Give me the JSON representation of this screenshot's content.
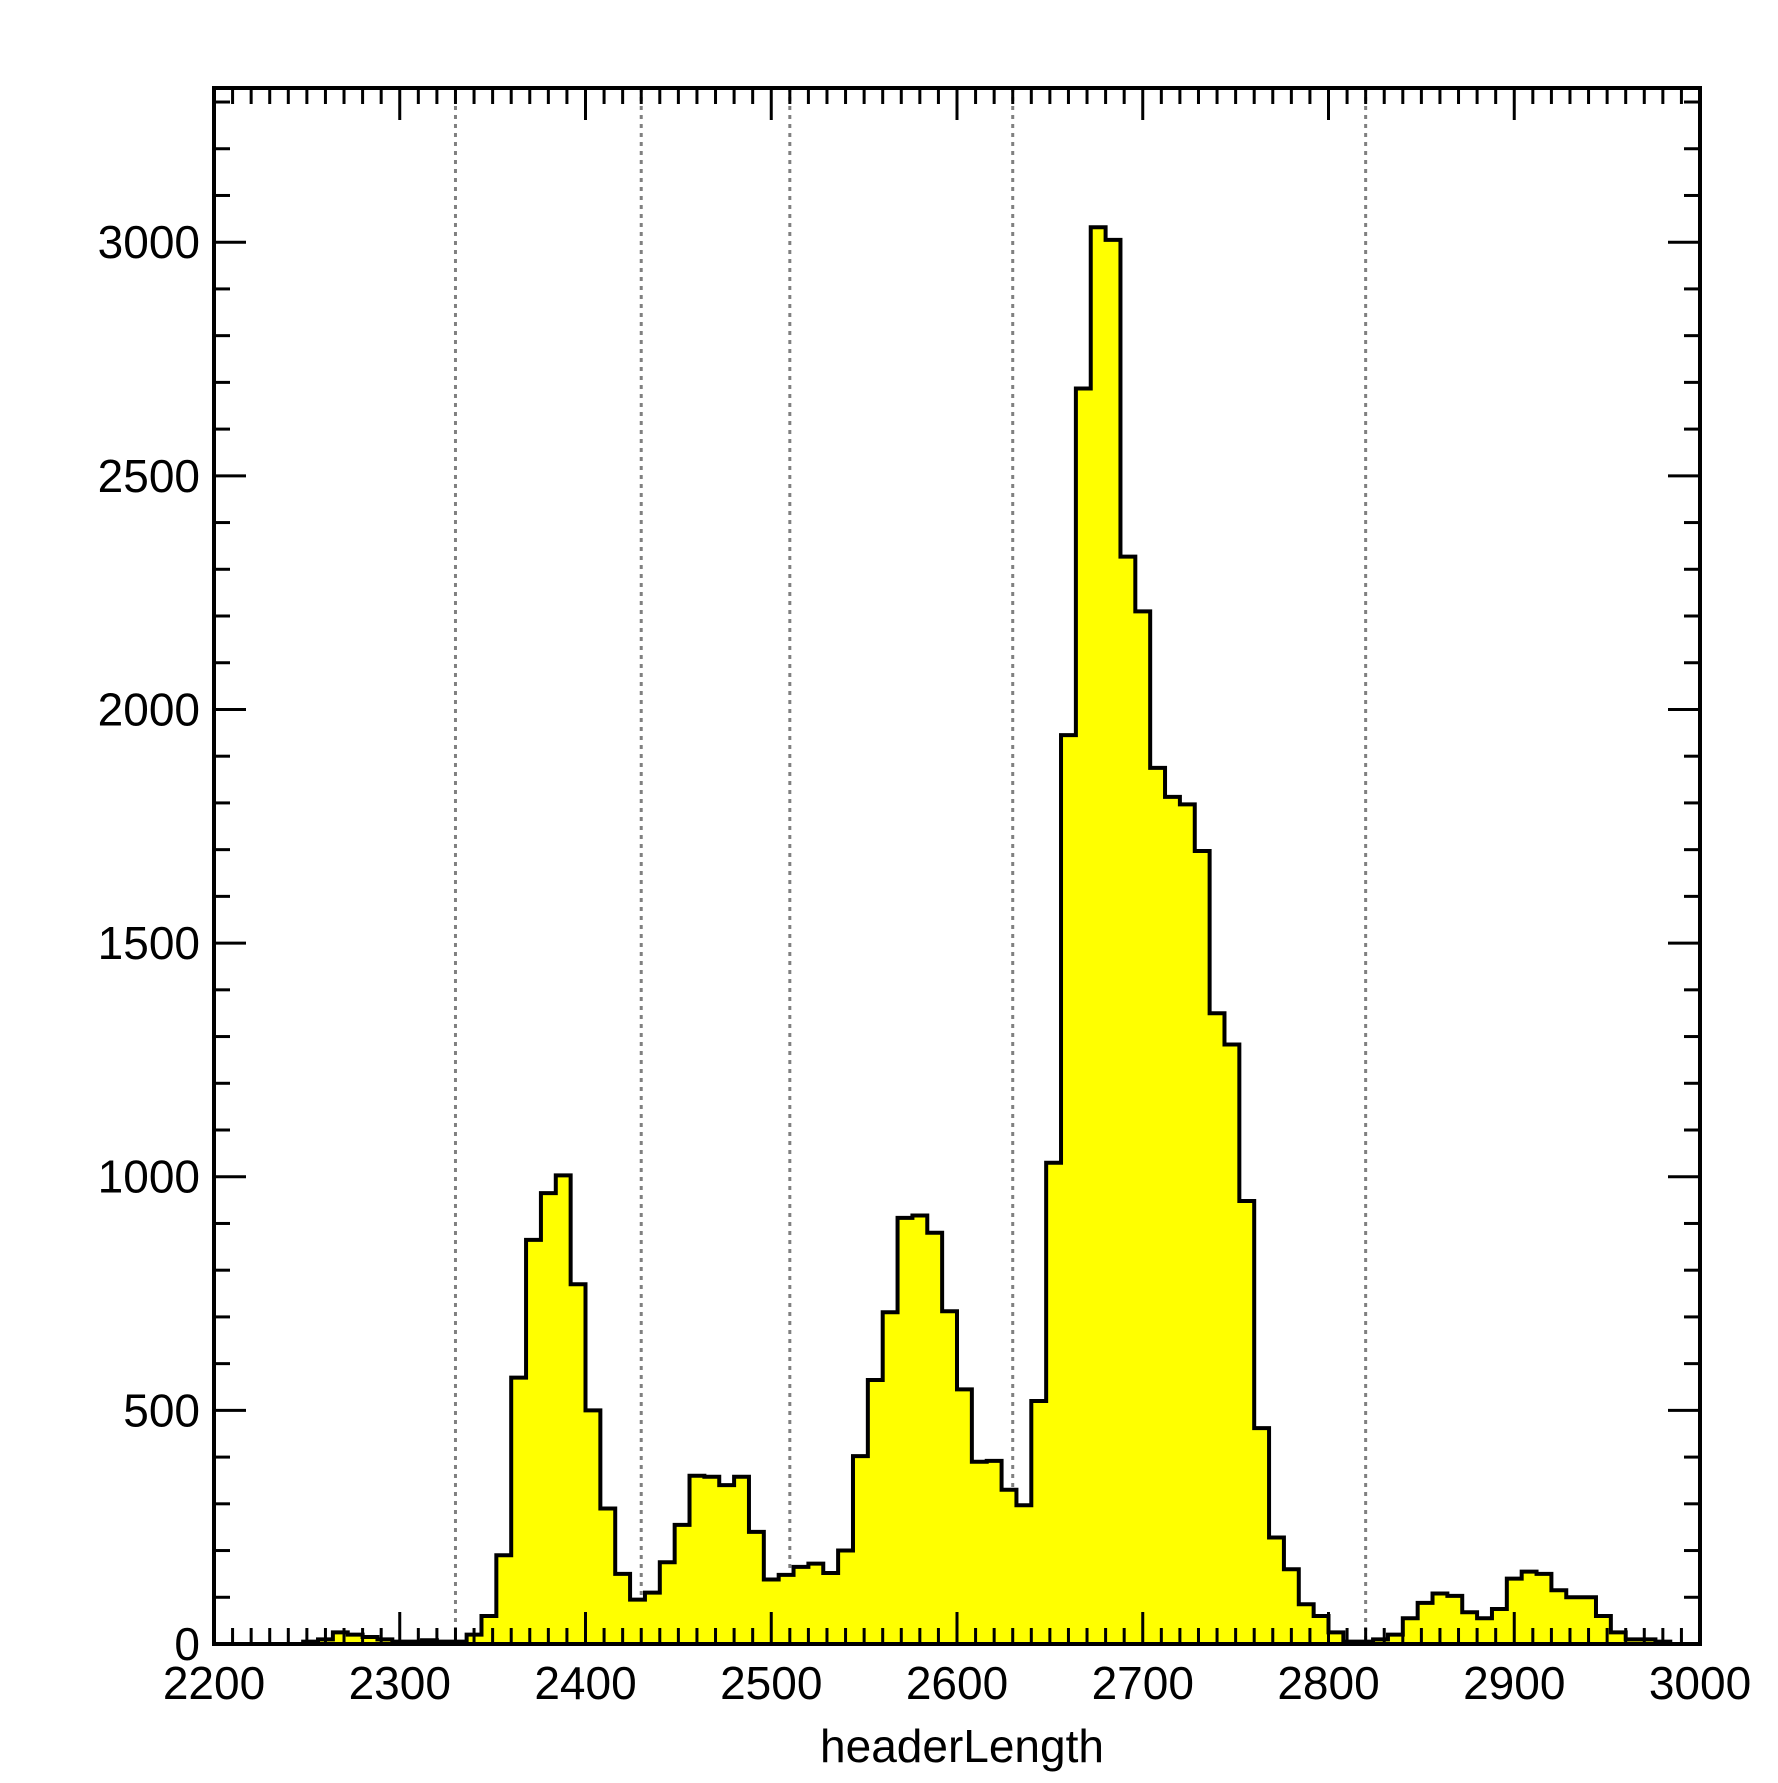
{
  "chart_data": {
    "type": "histogram",
    "title": "",
    "xlabel": "headerLength",
    "ylabel": "",
    "xlim": [
      2200,
      3000
    ],
    "ylim": [
      0,
      3330
    ],
    "bin_width": 8,
    "x_ticks": [
      "2200",
      "2300",
      "2400",
      "2500",
      "2600",
      "2700",
      "2800",
      "2900",
      "3000"
    ],
    "y_ticks": [
      "0",
      "500",
      "1000",
      "1500",
      "2000",
      "2500",
      "3000"
    ],
    "guide_lines_x": [
      2330,
      2430,
      2510,
      2630,
      2820
    ],
    "colors": {
      "fill": "#ffff00",
      "outline": "#000000",
      "guide_lines": "#808080"
    },
    "bins": [
      {
        "x": 2248,
        "y": 5
      },
      {
        "x": 2256,
        "y": 10
      },
      {
        "x": 2264,
        "y": 25
      },
      {
        "x": 2272,
        "y": 20
      },
      {
        "x": 2280,
        "y": 15
      },
      {
        "x": 2288,
        "y": 10
      },
      {
        "x": 2296,
        "y": 5
      },
      {
        "x": 2304,
        "y": 5
      },
      {
        "x": 2312,
        "y": 8
      },
      {
        "x": 2320,
        "y": 5
      },
      {
        "x": 2328,
        "y": 5
      },
      {
        "x": 2336,
        "y": 20
      },
      {
        "x": 2344,
        "y": 60
      },
      {
        "x": 2352,
        "y": 190
      },
      {
        "x": 2360,
        "y": 570
      },
      {
        "x": 2368,
        "y": 865
      },
      {
        "x": 2376,
        "y": 965
      },
      {
        "x": 2384,
        "y": 1003
      },
      {
        "x": 2392,
        "y": 770
      },
      {
        "x": 2400,
        "y": 500
      },
      {
        "x": 2408,
        "y": 290
      },
      {
        "x": 2416,
        "y": 150
      },
      {
        "x": 2424,
        "y": 95
      },
      {
        "x": 2432,
        "y": 110
      },
      {
        "x": 2440,
        "y": 175
      },
      {
        "x": 2448,
        "y": 255
      },
      {
        "x": 2456,
        "y": 360
      },
      {
        "x": 2464,
        "y": 358
      },
      {
        "x": 2472,
        "y": 340
      },
      {
        "x": 2480,
        "y": 358
      },
      {
        "x": 2488,
        "y": 240
      },
      {
        "x": 2496,
        "y": 138
      },
      {
        "x": 2504,
        "y": 148
      },
      {
        "x": 2512,
        "y": 165
      },
      {
        "x": 2520,
        "y": 172
      },
      {
        "x": 2528,
        "y": 152
      },
      {
        "x": 2536,
        "y": 200
      },
      {
        "x": 2544,
        "y": 402
      },
      {
        "x": 2552,
        "y": 565
      },
      {
        "x": 2560,
        "y": 710
      },
      {
        "x": 2568,
        "y": 912
      },
      {
        "x": 2576,
        "y": 917
      },
      {
        "x": 2584,
        "y": 880
      },
      {
        "x": 2592,
        "y": 712
      },
      {
        "x": 2600,
        "y": 545
      },
      {
        "x": 2608,
        "y": 390
      },
      {
        "x": 2616,
        "y": 392
      },
      {
        "x": 2624,
        "y": 330
      },
      {
        "x": 2632,
        "y": 297
      },
      {
        "x": 2640,
        "y": 520
      },
      {
        "x": 2648,
        "y": 1030
      },
      {
        "x": 2656,
        "y": 1945
      },
      {
        "x": 2664,
        "y": 2687
      },
      {
        "x": 2672,
        "y": 3032
      },
      {
        "x": 2680,
        "y": 3005
      },
      {
        "x": 2688,
        "y": 2327
      },
      {
        "x": 2696,
        "y": 2210
      },
      {
        "x": 2704,
        "y": 1875
      },
      {
        "x": 2712,
        "y": 1813
      },
      {
        "x": 2720,
        "y": 1797
      },
      {
        "x": 2728,
        "y": 1697
      },
      {
        "x": 2736,
        "y": 1350
      },
      {
        "x": 2744,
        "y": 1283
      },
      {
        "x": 2752,
        "y": 948
      },
      {
        "x": 2760,
        "y": 462
      },
      {
        "x": 2768,
        "y": 228
      },
      {
        "x": 2776,
        "y": 160
      },
      {
        "x": 2784,
        "y": 85
      },
      {
        "x": 2792,
        "y": 60
      },
      {
        "x": 2800,
        "y": 25
      },
      {
        "x": 2808,
        "y": 5
      },
      {
        "x": 2816,
        "y": 5
      },
      {
        "x": 2824,
        "y": 10
      },
      {
        "x": 2832,
        "y": 20
      },
      {
        "x": 2840,
        "y": 55
      },
      {
        "x": 2848,
        "y": 88
      },
      {
        "x": 2856,
        "y": 108
      },
      {
        "x": 2864,
        "y": 103
      },
      {
        "x": 2872,
        "y": 68
      },
      {
        "x": 2880,
        "y": 55
      },
      {
        "x": 2888,
        "y": 75
      },
      {
        "x": 2896,
        "y": 140
      },
      {
        "x": 2904,
        "y": 155
      },
      {
        "x": 2912,
        "y": 150
      },
      {
        "x": 2920,
        "y": 115
      },
      {
        "x": 2928,
        "y": 100
      },
      {
        "x": 2936,
        "y": 100
      },
      {
        "x": 2944,
        "y": 60
      },
      {
        "x": 2952,
        "y": 25
      },
      {
        "x": 2960,
        "y": 10
      },
      {
        "x": 2968,
        "y": 10
      },
      {
        "x": 2976,
        "y": 5
      }
    ]
  }
}
